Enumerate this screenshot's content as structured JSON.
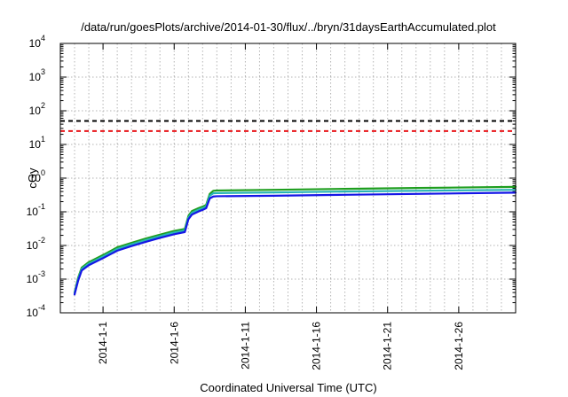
{
  "chart_data": {
    "type": "line",
    "title": "/data/run/goesPlots/archive/2014-01-30/flux/../bryn/31daysEarthAccumulated.plot",
    "xlabel": "Coordinated Universal Time (UTC)",
    "ylabel": "cGy",
    "yscale": "log",
    "ylim": [
      0.0001,
      10000
    ],
    "xlim": [
      "2013-12-29",
      "2014-01-30"
    ],
    "grid": true,
    "x_ticks": [
      "2014-1-1",
      "2014-1-6",
      "2014-1-11",
      "2014-1-16",
      "2014-1-21",
      "2014-1-26"
    ],
    "y_ticks": [
      {
        "value": 0.0001,
        "base": "10",
        "exp": "-4"
      },
      {
        "value": 0.001,
        "base": "10",
        "exp": "-3"
      },
      {
        "value": 0.01,
        "base": "10",
        "exp": "-2"
      },
      {
        "value": 0.1,
        "base": "10",
        "exp": "-1"
      },
      {
        "value": 1,
        "base": "10",
        "exp": "0"
      },
      {
        "value": 10,
        "base": "10",
        "exp": "1"
      },
      {
        "value": 100,
        "base": "10",
        "exp": "2"
      },
      {
        "value": 1000,
        "base": "10",
        "exp": "3"
      },
      {
        "value": 10000,
        "base": "10",
        "exp": "4"
      }
    ],
    "reference_lines": [
      {
        "value": 50,
        "color": "#000000",
        "style": "dashed"
      },
      {
        "value": 25,
        "color": "#e8161a",
        "style": "dashed"
      }
    ],
    "series": [
      {
        "color": "#1f9e1f",
        "points": [
          [
            "2013-12-30",
            0.0004
          ],
          [
            "2013-12-30T06",
            0.0011
          ],
          [
            "2013-12-30T12",
            0.0022
          ],
          [
            "2013-12-31",
            0.0032
          ],
          [
            "2014-01-01",
            0.0052
          ],
          [
            "2014-01-02",
            0.0088
          ],
          [
            "2014-01-03",
            0.012
          ],
          [
            "2014-01-04",
            0.016
          ],
          [
            "2014-01-05",
            0.021
          ],
          [
            "2014-01-06",
            0.027
          ],
          [
            "2014-01-06T18",
            0.031
          ],
          [
            "2014-01-07",
            0.075
          ],
          [
            "2014-01-07T06",
            0.105
          ],
          [
            "2014-01-07T18",
            0.13
          ],
          [
            "2014-01-08",
            0.142
          ],
          [
            "2014-01-08T06",
            0.16
          ],
          [
            "2014-01-08T12",
            0.34
          ],
          [
            "2014-01-08T18",
            0.42
          ],
          [
            "2014-01-09",
            0.43
          ],
          [
            "2014-01-13",
            0.45
          ],
          [
            "2014-01-18",
            0.48
          ],
          [
            "2014-01-23",
            0.51
          ],
          [
            "2014-01-30",
            0.55
          ]
        ]
      },
      {
        "color": "#27b4b4",
        "points": [
          [
            "2013-12-30",
            0.00038
          ],
          [
            "2013-12-30T06",
            0.001
          ],
          [
            "2013-12-30T12",
            0.002
          ],
          [
            "2013-12-31",
            0.0029
          ],
          [
            "2014-01-01",
            0.0047
          ],
          [
            "2014-01-02",
            0.0079
          ],
          [
            "2014-01-03",
            0.0108
          ],
          [
            "2014-01-04",
            0.0144
          ],
          [
            "2014-01-05",
            0.0189
          ],
          [
            "2014-01-06",
            0.0243
          ],
          [
            "2014-01-06T18",
            0.028
          ],
          [
            "2014-01-07",
            0.067
          ],
          [
            "2014-01-07T06",
            0.094
          ],
          [
            "2014-01-07T18",
            0.117
          ],
          [
            "2014-01-08",
            0.128
          ],
          [
            "2014-01-08T06",
            0.144
          ],
          [
            "2014-01-08T12",
            0.3
          ],
          [
            "2014-01-08T18",
            0.355
          ],
          [
            "2014-01-09",
            0.36
          ],
          [
            "2014-01-13",
            0.375
          ],
          [
            "2014-01-18",
            0.4
          ],
          [
            "2014-01-23",
            0.42
          ],
          [
            "2014-01-30",
            0.45
          ]
        ]
      },
      {
        "color": "#1515e6",
        "points": [
          [
            "2013-12-30",
            0.00035
          ],
          [
            "2013-12-30T06",
            0.0009
          ],
          [
            "2013-12-30T12",
            0.0018
          ],
          [
            "2013-12-31",
            0.0026
          ],
          [
            "2014-01-01",
            0.0042
          ],
          [
            "2014-01-02",
            0.007
          ],
          [
            "2014-01-03",
            0.0096
          ],
          [
            "2014-01-04",
            0.0128
          ],
          [
            "2014-01-05",
            0.0168
          ],
          [
            "2014-01-06",
            0.0216
          ],
          [
            "2014-01-06T18",
            0.025
          ],
          [
            "2014-01-07",
            0.06
          ],
          [
            "2014-01-07T06",
            0.083
          ],
          [
            "2014-01-07T18",
            0.104
          ],
          [
            "2014-01-08",
            0.114
          ],
          [
            "2014-01-08T06",
            0.128
          ],
          [
            "2014-01-08T12",
            0.25
          ],
          [
            "2014-01-08T18",
            0.285
          ],
          [
            "2014-01-09",
            0.29
          ],
          [
            "2014-01-13",
            0.3
          ],
          [
            "2014-01-18",
            0.32
          ],
          [
            "2014-01-23",
            0.34
          ],
          [
            "2014-01-30",
            0.37
          ]
        ]
      }
    ]
  }
}
